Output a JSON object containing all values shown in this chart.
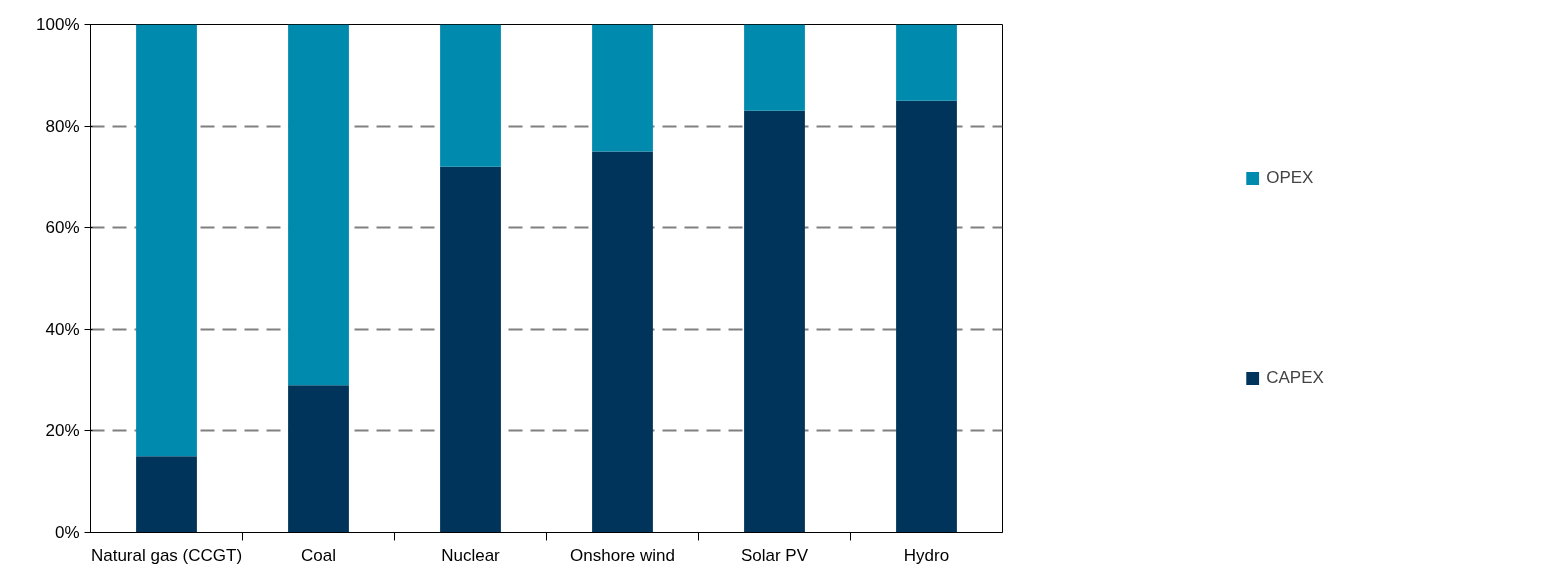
{
  "chart_data": {
    "type": "bar",
    "stacked": true,
    "categories": [
      "Natural gas (CCGT)",
      "Coal",
      "Nuclear",
      "Onshore wind",
      "Solar PV",
      "Hydro"
    ],
    "series": [
      {
        "name": "CAPEX",
        "color": "#00345a",
        "values": [
          15,
          29,
          72,
          75,
          83,
          85
        ]
      },
      {
        "name": "OPEX",
        "color": "#008aad",
        "values": [
          85,
          71,
          28,
          25,
          17,
          15
        ]
      }
    ],
    "ylim": [
      0,
      100
    ],
    "yticks": [
      {
        "value": 0,
        "label": "0%"
      },
      {
        "value": 20,
        "label": "20%"
      },
      {
        "value": 40,
        "label": "40%"
      },
      {
        "value": 60,
        "label": "60%"
      },
      {
        "value": 80,
        "label": "80%"
      },
      {
        "value": 100,
        "label": "100%"
      }
    ],
    "grid": "y",
    "legend": "right"
  }
}
